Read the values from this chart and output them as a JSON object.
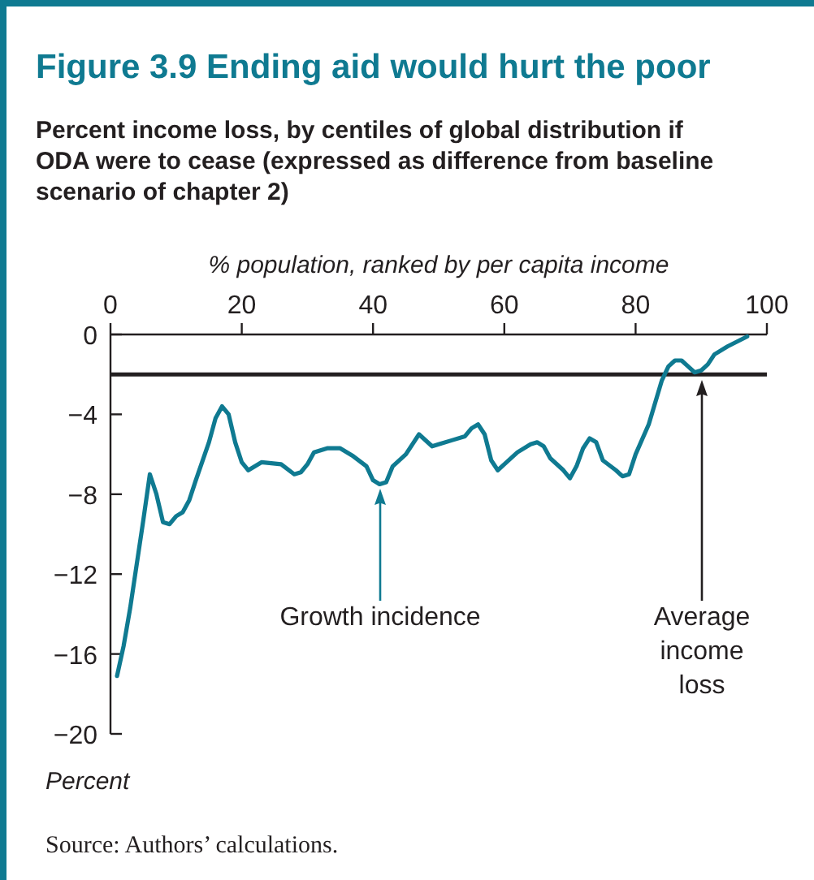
{
  "chart_data": {
    "type": "line",
    "title": "Figure 3.9  Ending aid would hurt the poor",
    "subtitle": "Percent income loss, by centiles of global distribution if ODA were to cease (expressed as difference from baseline scenario of chapter 2)",
    "xlabel": "% population, ranked by per capita income",
    "ylabel": "Percent",
    "x": [
      1,
      2,
      3,
      5,
      6,
      7,
      8,
      9,
      10,
      11,
      12,
      13,
      15,
      16,
      17,
      18,
      19,
      20,
      21,
      23,
      26,
      28,
      29,
      30,
      31,
      33,
      35,
      37,
      39,
      40,
      41,
      42,
      43,
      45,
      47,
      49,
      50,
      52,
      54,
      55,
      56,
      57,
      58,
      59,
      60,
      62,
      64,
      65,
      66,
      67,
      69,
      70,
      71,
      72,
      73,
      74,
      75,
      77,
      78,
      79,
      80,
      82,
      84,
      85,
      86,
      87,
      88,
      89,
      90,
      91,
      92,
      94,
      97
    ],
    "series": [
      {
        "color": "#0f7a91",
        "values": [
          -17.1,
          -15.6,
          -13.7,
          -9.3,
          -7.0,
          -8.0,
          -9.4,
          -9.5,
          -9.1,
          -8.9,
          -8.3,
          -7.3,
          -5.4,
          -4.2,
          -3.6,
          -4.0,
          -5.4,
          -6.4,
          -6.8,
          -6.4,
          -6.5,
          -7.0,
          -6.9,
          -6.5,
          -5.9,
          -5.7,
          -5.7,
          -6.1,
          -6.6,
          -7.3,
          -7.5,
          -7.4,
          -6.6,
          -6.0,
          -5.0,
          -5.6,
          -5.5,
          -5.3,
          -5.1,
          -4.7,
          -4.5,
          -5.0,
          -6.3,
          -6.8,
          -6.5,
          -5.9,
          -5.5,
          -5.4,
          -5.6,
          -6.2,
          -6.8,
          -7.2,
          -6.6,
          -5.7,
          -5.2,
          -5.4,
          -6.3,
          -6.8,
          -7.1,
          -7.0,
          -6.0,
          -4.5,
          -2.3,
          -1.6,
          -1.3,
          -1.3,
          -1.6,
          -1.9,
          -1.8,
          -1.5,
          -1.0,
          -0.6,
          -0.1
        ]
      }
    ],
    "xlim": [
      0,
      100
    ],
    "xticks": [
      0,
      20,
      40,
      60,
      80,
      100
    ],
    "ylim": [
      -20,
      0
    ],
    "yticks": [
      0,
      {
        "value": -4,
        "label": "−4"
      },
      {
        "value": -8,
        "label": "−8"
      },
      {
        "value": -12,
        "label": "−12"
      },
      {
        "value": -16,
        "label": "−16"
      },
      {
        "value": -20,
        "label": "−20"
      }
    ],
    "grid": false,
    "line_style": "solid",
    "ref_lines": [
      {
        "axis": "y",
        "value": -2,
        "color": "#231f20"
      }
    ],
    "annotations": [
      "Growth incidence",
      "Average income loss",
      "Source: Authors’ calculations."
    ]
  }
}
